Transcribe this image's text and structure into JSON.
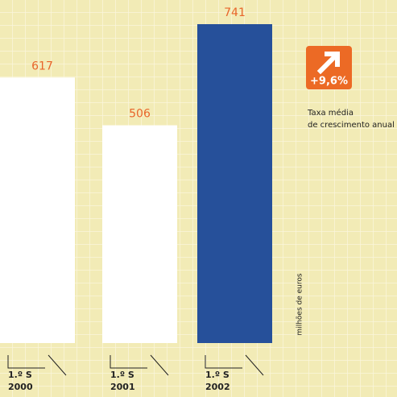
{
  "chart_data": {
    "type": "bar",
    "categories": [
      [
        "1.º S",
        "2000"
      ],
      [
        "1.º S",
        "2001"
      ],
      [
        "1.º S",
        "2002"
      ]
    ],
    "values": [
      617,
      506,
      741
    ],
    "colors": [
      "#ffffff",
      "#ffffff",
      "#26509a"
    ],
    "value_label_color": "#e8652a",
    "y_label": "milhões de euros",
    "growth_badge": "+9,6%",
    "growth_caption": [
      "Taxa média",
      "de crescimento anual"
    ]
  }
}
